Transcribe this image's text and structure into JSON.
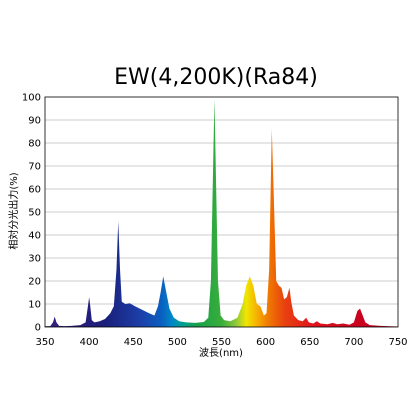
{
  "chart_data": {
    "type": "area",
    "title": "EW(4,200K)(Ra84)",
    "xlabel": "波長(nm)",
    "ylabel": "相対分光出力(%)",
    "xlim": [
      350,
      750
    ],
    "ylim": [
      0,
      100
    ],
    "x_ticks": [
      350,
      400,
      450,
      500,
      550,
      600,
      650,
      700,
      750
    ],
    "y_ticks": [
      0,
      10,
      20,
      30,
      40,
      50,
      60,
      70,
      80,
      90,
      100
    ],
    "grid": "horizontal",
    "series": [
      {
        "points": [
          [
            350,
            0.3
          ],
          [
            356,
            0.4
          ],
          [
            359,
            2
          ],
          [
            361,
            4.5
          ],
          [
            363,
            2
          ],
          [
            366,
            0.5
          ],
          [
            372,
            0.4
          ],
          [
            380,
            0.5
          ],
          [
            390,
            0.8
          ],
          [
            396,
            2
          ],
          [
            399,
            10
          ],
          [
            400,
            13
          ],
          [
            401,
            10
          ],
          [
            403,
            3
          ],
          [
            406,
            2
          ],
          [
            412,
            2.5
          ],
          [
            418,
            3.5
          ],
          [
            424,
            6
          ],
          [
            428,
            9
          ],
          [
            431,
            25
          ],
          [
            433,
            46
          ],
          [
            435,
            25
          ],
          [
            437,
            11
          ],
          [
            441,
            10
          ],
          [
            446,
            10.3
          ],
          [
            452,
            9
          ],
          [
            460,
            7.5
          ],
          [
            468,
            6
          ],
          [
            474,
            5
          ],
          [
            478,
            9
          ],
          [
            481,
            15
          ],
          [
            484,
            22
          ],
          [
            487,
            16
          ],
          [
            491,
            8
          ],
          [
            496,
            4
          ],
          [
            502,
            2.5
          ],
          [
            510,
            2
          ],
          [
            520,
            1.8
          ],
          [
            530,
            2.2
          ],
          [
            535,
            4
          ],
          [
            538,
            20
          ],
          [
            540,
            60
          ],
          [
            542,
            99
          ],
          [
            544,
            60
          ],
          [
            546,
            20
          ],
          [
            549,
            5
          ],
          [
            553,
            3
          ],
          [
            560,
            2.5
          ],
          [
            568,
            4
          ],
          [
            574,
            10
          ],
          [
            578,
            18
          ],
          [
            582,
            22
          ],
          [
            586,
            18
          ],
          [
            590,
            10
          ],
          [
            594,
            9
          ],
          [
            598,
            5
          ],
          [
            601,
            6
          ],
          [
            604,
            25
          ],
          [
            607,
            86
          ],
          [
            609,
            60
          ],
          [
            612,
            20
          ],
          [
            615,
            18
          ],
          [
            618,
            17
          ],
          [
            621,
            12
          ],
          [
            624,
            13
          ],
          [
            627,
            17
          ],
          [
            629,
            11
          ],
          [
            632,
            5
          ],
          [
            637,
            3
          ],
          [
            642,
            2.5
          ],
          [
            646,
            4
          ],
          [
            649,
            2
          ],
          [
            654,
            1.5
          ],
          [
            658,
            2.5
          ],
          [
            662,
            1.5
          ],
          [
            670,
            1.2
          ],
          [
            676,
            1.8
          ],
          [
            681,
            1.2
          ],
          [
            688,
            1.5
          ],
          [
            695,
            1
          ],
          [
            700,
            2
          ],
          [
            704,
            7
          ],
          [
            707,
            8
          ],
          [
            710,
            5
          ],
          [
            713,
            2
          ],
          [
            718,
            0.8
          ],
          [
            730,
            0.5
          ],
          [
            740,
            0.3
          ],
          [
            750,
            0.2
          ]
        ]
      }
    ]
  }
}
